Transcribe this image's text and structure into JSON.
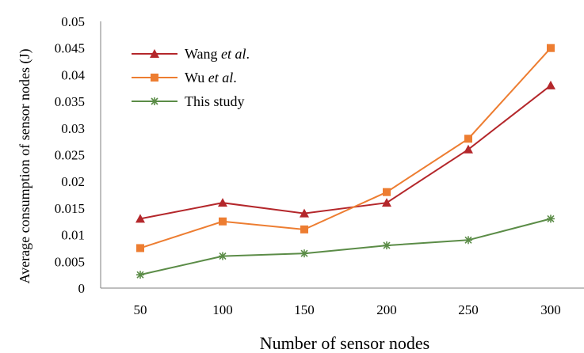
{
  "chart_data": {
    "type": "line",
    "title": "",
    "xlabel": "Number of sensor nodes",
    "ylabel": "Average consumption of sensor nodes  (J)",
    "categories": [
      "50",
      "100",
      "150",
      "200",
      "250",
      "300"
    ],
    "ylim": [
      0,
      0.05
    ],
    "yticks": [
      "0",
      "0.005",
      "0.01",
      "0.015",
      "0.02",
      "0.025",
      "0.03",
      "0.035",
      "0.04",
      "0.045",
      "0.05"
    ],
    "grid": false,
    "legend_position": "top-left",
    "series": [
      {
        "name_main": "Wang ",
        "name_italic": "et al",
        "name_tail": ".",
        "color": "#b4272b",
        "marker": "triangle",
        "values": [
          0.013,
          0.016,
          0.014,
          0.016,
          0.026,
          0.038
        ]
      },
      {
        "name_main": "Wu ",
        "name_italic": "et al",
        "name_tail": ".",
        "color": "#ed7d31",
        "marker": "square",
        "values": [
          0.0075,
          0.0125,
          0.011,
          0.018,
          0.028,
          0.045
        ]
      },
      {
        "name_main": "This study",
        "name_italic": "",
        "name_tail": "",
        "color": "#5b8c47",
        "marker": "star",
        "values": [
          0.0025,
          0.006,
          0.0065,
          0.008,
          0.009,
          0.013
        ]
      }
    ]
  }
}
